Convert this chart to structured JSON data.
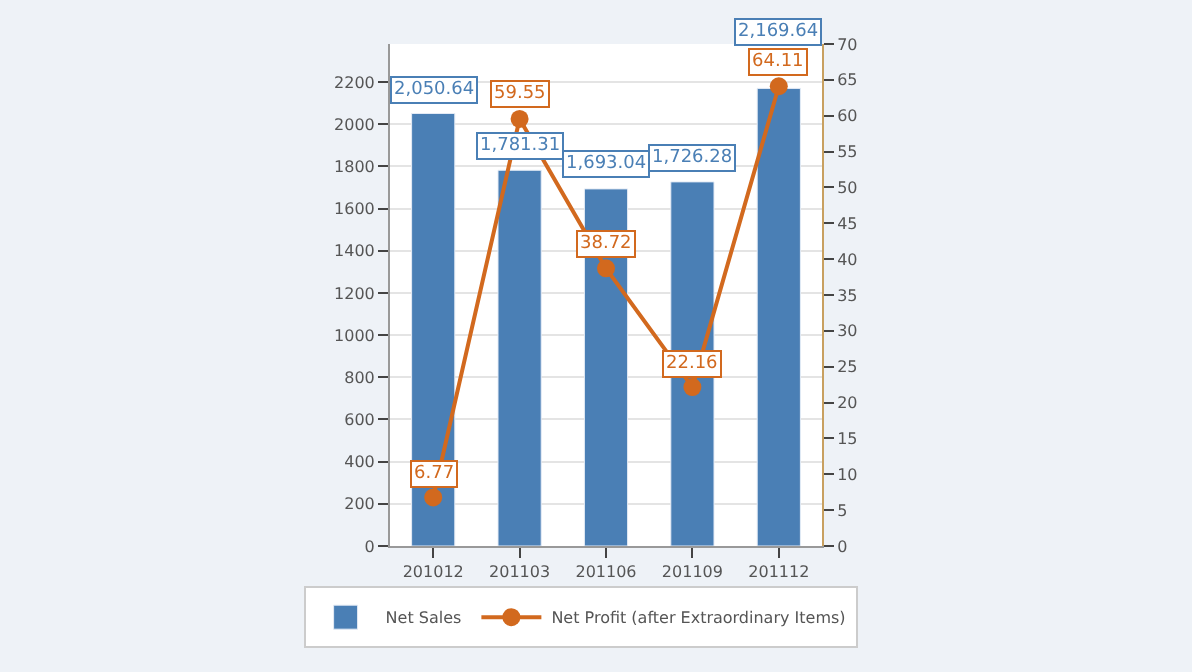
{
  "chart_data": {
    "type": "bar",
    "categories": [
      "201012",
      "201103",
      "201106",
      "201109",
      "201112"
    ],
    "series": [
      {
        "name": "Net Sales",
        "color": "#4a7fb5",
        "values": [
          2050.64,
          1781.31,
          1693.04,
          1726.28,
          2169.64
        ],
        "value_labels": [
          "2,050.64",
          "1,781.31",
          "1,693.04",
          "1,726.28",
          "2,169.64"
        ]
      },
      {
        "name": "Net Profit (after Extraordinary Items)",
        "type": "line",
        "axis": "y2",
        "color": "#d2691e",
        "values": [
          6.77,
          59.55,
          38.72,
          22.16,
          64.11
        ],
        "value_labels": [
          "6.77",
          "59.55",
          "38.72",
          "22.16",
          "64.11"
        ]
      }
    ],
    "ylim": [
      0,
      2380
    ],
    "yticks": [
      0,
      200,
      400,
      600,
      800,
      1000,
      1200,
      1400,
      1600,
      1800,
      2000,
      2200
    ],
    "y2lim": [
      0,
      70
    ],
    "y2ticks": [
      0,
      5,
      10,
      15,
      20,
      25,
      30,
      35,
      40,
      45,
      50,
      55,
      60,
      65,
      70
    ],
    "grid": "y",
    "legend": "bottom",
    "marker": "circle",
    "line_style": "solid"
  }
}
